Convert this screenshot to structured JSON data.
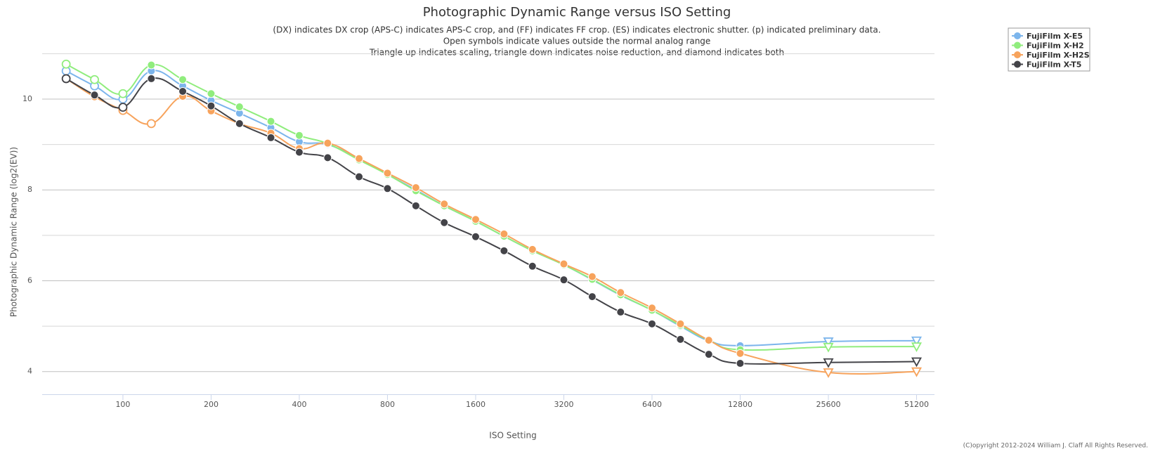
{
  "chart_data": {
    "type": "line",
    "title": "Photographic Dynamic Range versus ISO Setting",
    "subtitle": [
      "(DX) indicates DX crop (APS-C) indicates APS-C crop, and (FF) indicates FF crop. (ES) indicates electronic shutter. (p) indicated preliminary data.",
      "Open symbols indicate values outside the normal analog range",
      "Triangle up indicates scaling, triangle down indicates noise reduction, and diamond indicates both"
    ],
    "x_label": "ISO Setting",
    "y_label": "Photographic Dynamic Range (log2(EV))",
    "credit": "(C)opyright 2012-2024 William J. Claff All Rights Reserved.",
    "x": [
      64,
      80,
      100,
      125,
      160,
      200,
      250,
      320,
      400,
      500,
      640,
      800,
      1000,
      1250,
      1600,
      2000,
      2500,
      3200,
      4000,
      5000,
      6400,
      8000,
      10000,
      12800,
      25600,
      51200
    ],
    "x_log": true,
    "xlim": [
      53,
      58950
    ],
    "xticks": [
      100,
      200,
      400,
      800,
      1600,
      3200,
      6400,
      12800,
      25600,
      51200
    ],
    "ylim": [
      3.5,
      11.3
    ],
    "yticks": [
      4,
      6,
      8,
      10
    ],
    "y_minor_grid": [
      5,
      7,
      9,
      11
    ],
    "grid": true,
    "legend": "top-right",
    "series": [
      {
        "name": "FujiFilm X-E5",
        "color": "#7cb5ec",
        "values": [
          10.62,
          10.29,
          10.0,
          10.62,
          10.29,
          9.97,
          9.69,
          9.37,
          9.06,
          9.0,
          8.68,
          8.34,
          8.0,
          7.65,
          7.31,
          6.98,
          6.66,
          6.35,
          6.02,
          5.68,
          5.35,
          5.0,
          4.68,
          4.57,
          4.66,
          4.68
        ],
        "markers": [
          "open-circle",
          "open-circle",
          "open-circle",
          "circle",
          "circle",
          "circle",
          "circle",
          "circle",
          "circle",
          "circle",
          "circle",
          "circle",
          "circle",
          "circle",
          "circle",
          "circle",
          "circle",
          "circle",
          "circle",
          "circle",
          "circle",
          "circle",
          "circle",
          "circle",
          "open-triangle-down",
          "open-triangle-down"
        ]
      },
      {
        "name": "FujiFilm X-H2",
        "color": "#90ed7d",
        "values": [
          10.77,
          10.43,
          10.12,
          10.75,
          10.43,
          10.12,
          9.83,
          9.51,
          9.2,
          9.02,
          8.66,
          8.34,
          7.98,
          7.65,
          7.31,
          6.98,
          6.66,
          6.35,
          6.03,
          5.69,
          5.35,
          5.02,
          4.69,
          4.48,
          4.54,
          4.55
        ],
        "markers": [
          "open-circle",
          "open-circle",
          "open-circle",
          "circle",
          "circle",
          "circle",
          "circle",
          "circle",
          "circle",
          "circle",
          "circle",
          "circle",
          "circle",
          "circle",
          "circle",
          "circle",
          "circle",
          "circle",
          "circle",
          "circle",
          "circle",
          "circle",
          "circle",
          "circle",
          "open-triangle-down",
          "open-triangle-down"
        ]
      },
      {
        "name": "FujiFilm X-H2S",
        "color": "#f7a35c",
        "values": [
          10.45,
          10.05,
          9.75,
          9.46,
          10.06,
          9.74,
          9.46,
          9.25,
          8.91,
          9.03,
          8.69,
          8.37,
          8.05,
          7.69,
          7.35,
          7.03,
          6.69,
          6.37,
          6.09,
          5.74,
          5.4,
          5.05,
          4.69,
          4.4,
          3.98,
          4.0
        ],
        "markers": [
          "circle",
          "circle",
          "open-circle",
          "open-circle",
          "circle",
          "circle",
          "circle",
          "circle",
          "circle",
          "circle",
          "circle",
          "circle",
          "circle",
          "circle",
          "circle",
          "circle",
          "circle",
          "circle",
          "circle",
          "circle",
          "circle",
          "circle",
          "circle",
          "circle",
          "open-triangle-down",
          "open-triangle-down"
        ]
      },
      {
        "name": "FujiFilm X-T5",
        "color": "#434348",
        "values": [
          10.45,
          10.09,
          9.82,
          10.45,
          10.17,
          9.85,
          9.46,
          9.15,
          8.83,
          8.71,
          8.29,
          8.03,
          7.65,
          7.28,
          6.97,
          6.66,
          6.32,
          6.02,
          5.65,
          5.31,
          5.05,
          4.71,
          4.38,
          4.18,
          4.2,
          4.22
        ],
        "markers": [
          "open-circle",
          "circle",
          "open-circle",
          "circle",
          "circle",
          "circle",
          "circle",
          "circle",
          "circle",
          "circle",
          "circle",
          "circle",
          "circle",
          "circle",
          "circle",
          "circle",
          "circle",
          "circle",
          "circle",
          "circle",
          "circle",
          "circle",
          "circle",
          "circle",
          "open-triangle-down",
          "open-triangle-down"
        ]
      }
    ]
  }
}
